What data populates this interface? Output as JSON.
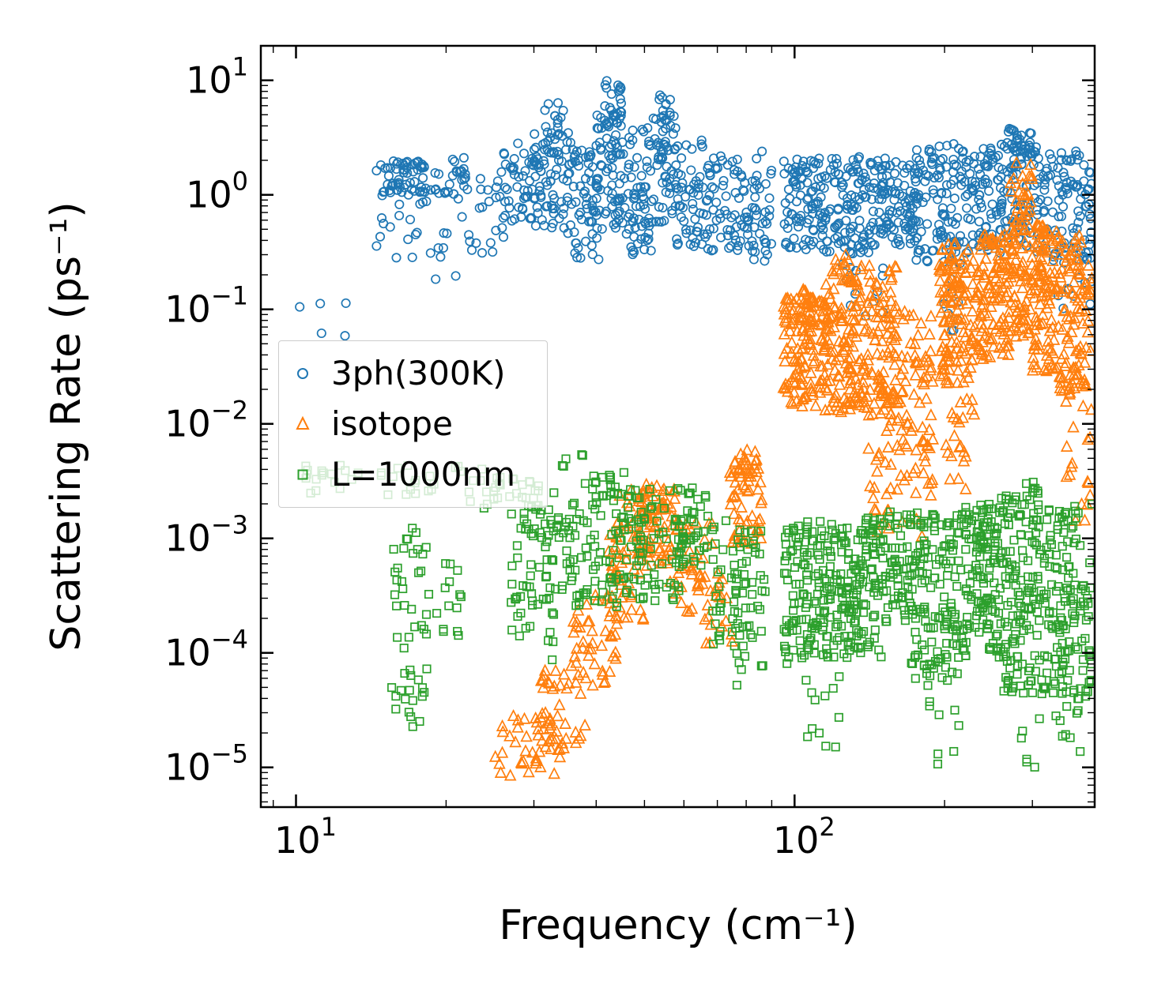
{
  "figure": {
    "background": "#ffffff",
    "spine_color": "#000000",
    "legend_border_color": "#cccccc"
  },
  "chart_data": {
    "type": "scatter",
    "title": "",
    "xlabel": "Frequency (cm⁻¹)",
    "ylabel": "Scattering Rate (ps⁻¹)",
    "xscale": "log",
    "yscale": "log",
    "xlim": [
      8.5,
      400
    ],
    "ylim": [
      4.5e-06,
      20
    ],
    "grid": false,
    "x_axis": {
      "ticks": [
        {
          "value": 10,
          "base": "10",
          "exp": "1"
        },
        {
          "value": 100,
          "base": "10",
          "exp": "2"
        }
      ]
    },
    "y_axis": {
      "ticks": [
        {
          "value": 10,
          "base": "10",
          "exp": "1"
        },
        {
          "value": 1,
          "base": "10",
          "exp": "0"
        },
        {
          "value": 0.1,
          "base": "10",
          "exp": "−1"
        },
        {
          "value": 0.01,
          "base": "10",
          "exp": "−2"
        },
        {
          "value": 0.001,
          "base": "10",
          "exp": "−3"
        },
        {
          "value": 0.0001,
          "base": "10",
          "exp": "−4"
        },
        {
          "value": 1e-05,
          "base": "10",
          "exp": "−5"
        }
      ]
    },
    "legend": {
      "location": "center left",
      "entries": [
        "3ph(300K)",
        "isotope",
        "L=1000nm"
      ]
    },
    "cluster_format": "[x_min_cm-1, x_max_cm-1, log10_rate_min, log10_rate_max, n_points] — dense point clouds read off the figure",
    "series": [
      {
        "name": "3ph(300K)",
        "marker": "circle",
        "color": "#1f77b4",
        "clusters": [
          [
            10.0,
            12.6,
            -1.4,
            -0.85,
            5
          ],
          [
            14.5,
            18.0,
            0.02,
            0.3,
            55
          ],
          [
            14.5,
            18.5,
            -0.55,
            0.02,
            18
          ],
          [
            18.0,
            21.0,
            -0.8,
            -0.3,
            8
          ],
          [
            17.5,
            22.0,
            0.0,
            0.33,
            28
          ],
          [
            21.0,
            26.5,
            -0.6,
            0.26,
            30
          ],
          [
            26.0,
            31.0,
            -0.28,
            0.45,
            55
          ],
          [
            30.0,
            36.0,
            -0.35,
            0.55,
            70
          ],
          [
            31.5,
            34.5,
            0.45,
            0.88,
            14
          ],
          [
            36.0,
            40.5,
            -0.6,
            0.42,
            55
          ],
          [
            40.0,
            46.0,
            -0.3,
            0.7,
            75
          ],
          [
            41.5,
            45.0,
            0.6,
            1.0,
            22
          ],
          [
            46.0,
            52.0,
            -0.55,
            0.6,
            65
          ],
          [
            52.0,
            58.0,
            -0.25,
            0.7,
            55
          ],
          [
            53.5,
            56.5,
            0.6,
            0.92,
            10
          ],
          [
            58.0,
            66.0,
            -0.45,
            0.5,
            50
          ],
          [
            66.0,
            80.0,
            -0.5,
            0.35,
            65
          ],
          [
            80.0,
            90.0,
            -0.58,
            0.38,
            45
          ],
          [
            95.0,
            115.0,
            -0.48,
            0.32,
            95
          ],
          [
            115.0,
            145.0,
            -0.52,
            0.35,
            110
          ],
          [
            125.0,
            152.0,
            -1.15,
            -0.52,
            12
          ],
          [
            145.0,
            175.0,
            -0.45,
            0.32,
            95
          ],
          [
            175.0,
            215.0,
            -0.6,
            0.45,
            100
          ],
          [
            195.0,
            215.0,
            -1.25,
            -0.6,
            8
          ],
          [
            215.0,
            260.0,
            -0.52,
            0.42,
            95
          ],
          [
            260.0,
            300.0,
            -0.45,
            0.58,
            85
          ],
          [
            278.0,
            296.0,
            0.3,
            0.56,
            10
          ],
          [
            300.0,
            395.0,
            -0.58,
            0.42,
            115
          ],
          [
            330.0,
            395.0,
            -1.05,
            -0.58,
            10
          ]
        ]
      },
      {
        "name": "isotope",
        "marker": "triangle",
        "color": "#ff7f0e",
        "clusters": [
          [
            25.0,
            34.0,
            -5.1,
            -4.55,
            40
          ],
          [
            31.0,
            38.0,
            -4.85,
            -4.1,
            38
          ],
          [
            36.0,
            44.0,
            -4.35,
            -3.5,
            42
          ],
          [
            42.0,
            50.0,
            -3.75,
            -2.95,
            48
          ],
          [
            48.0,
            56.0,
            -3.25,
            -2.55,
            52
          ],
          [
            44.0,
            58.0,
            -2.95,
            -2.52,
            38
          ],
          [
            56.0,
            70.0,
            -3.65,
            -2.8,
            42
          ],
          [
            62.0,
            76.0,
            -3.95,
            -3.3,
            22
          ],
          [
            74.0,
            86.0,
            -3.05,
            -2.3,
            55
          ],
          [
            78.0,
            84.0,
            -2.48,
            -2.22,
            14
          ],
          [
            95.0,
            115.0,
            -1.85,
            -0.9,
            125
          ],
          [
            98.0,
            108.0,
            -1.12,
            -0.82,
            15
          ],
          [
            115.0,
            135.0,
            -1.9,
            -0.72,
            115
          ],
          [
            119.0,
            130.0,
            -0.78,
            -0.52,
            12
          ],
          [
            135.0,
            160.0,
            -1.92,
            -0.62,
            115
          ],
          [
            140.0,
            165.0,
            -2.95,
            -1.92,
            28
          ],
          [
            160.0,
            190.0,
            -2.25,
            -1.0,
            65
          ],
          [
            165.0,
            190.0,
            -3.05,
            -2.25,
            14
          ],
          [
            195.0,
            230.0,
            -1.65,
            -0.42,
            125
          ],
          [
            200.0,
            230.0,
            -2.65,
            -1.65,
            22
          ],
          [
            230.0,
            270.0,
            -1.45,
            -0.35,
            115
          ],
          [
            270.0,
            300.0,
            -1.25,
            0.28,
            95
          ],
          [
            300.0,
            340.0,
            -1.55,
            -0.25,
            105
          ],
          [
            340.0,
            395.0,
            -1.75,
            -0.35,
            105
          ],
          [
            350.0,
            395.0,
            -2.85,
            -1.75,
            18
          ]
        ]
      },
      {
        "name": "L=1000nm",
        "marker": "square",
        "color": "#2ca02c",
        "clusters": [
          [
            10.0,
            30.0,
            -2.62,
            -2.36,
            45
          ],
          [
            22.0,
            31.0,
            -2.75,
            -2.45,
            22
          ],
          [
            15.5,
            18.5,
            -4.5,
            -2.9,
            42
          ],
          [
            16.0,
            18.0,
            -4.65,
            -4.25,
            7
          ],
          [
            18.5,
            21.5,
            -3.85,
            -3.05,
            14
          ],
          [
            27.0,
            33.0,
            -4.15,
            -2.6,
            65
          ],
          [
            33.0,
            45.0,
            -3.6,
            -2.6,
            85
          ],
          [
            34.0,
            38.0,
            -2.42,
            -2.24,
            5
          ],
          [
            38.0,
            46.0,
            -2.62,
            -2.42,
            14
          ],
          [
            45.0,
            60.0,
            -3.55,
            -2.55,
            85
          ],
          [
            58.0,
            68.0,
            -3.25,
            -2.55,
            40
          ],
          [
            68.0,
            80.0,
            -3.95,
            -2.8,
            40
          ],
          [
            75.0,
            88.0,
            -4.35,
            -2.9,
            42
          ],
          [
            95.0,
            120.0,
            -4.1,
            -2.85,
            140
          ],
          [
            105.0,
            125.0,
            -4.95,
            -4.1,
            12
          ],
          [
            120.0,
            150.0,
            -4.05,
            -2.8,
            140
          ],
          [
            150.0,
            170.0,
            -3.75,
            -2.75,
            55
          ],
          [
            170.0,
            215.0,
            -4.25,
            -2.75,
            140
          ],
          [
            185.0,
            215.0,
            -5.0,
            -4.25,
            9
          ],
          [
            215.0,
            260.0,
            -4.05,
            -2.7,
            140
          ],
          [
            260.0,
            310.0,
            -4.35,
            -2.6,
            130
          ],
          [
            290.0,
            310.0,
            -2.62,
            -2.5,
            7
          ],
          [
            285.0,
            310.0,
            -5.0,
            -4.35,
            7
          ],
          [
            310.0,
            395.0,
            -4.4,
            -2.7,
            150
          ],
          [
            330.0,
            395.0,
            -4.95,
            -4.4,
            9
          ]
        ]
      }
    ]
  }
}
